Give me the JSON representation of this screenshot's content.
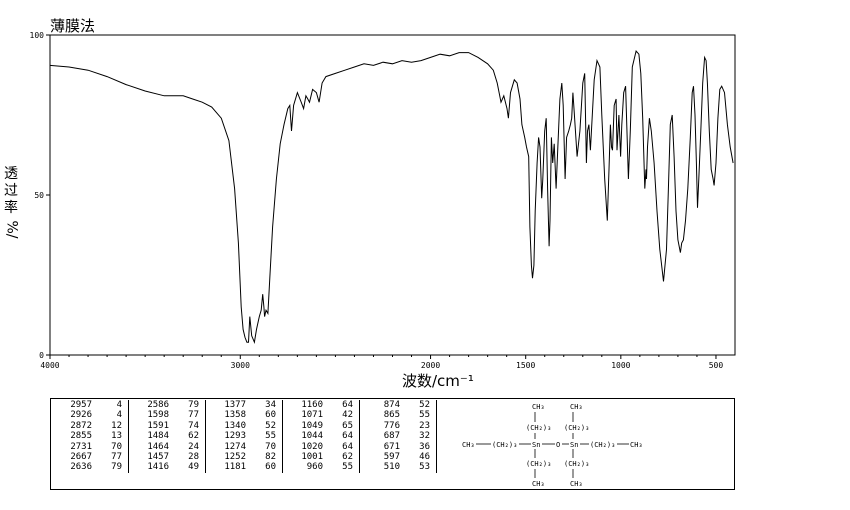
{
  "title": "薄膜法",
  "ylabel_chars": [
    "透",
    "过",
    "率"
  ],
  "ylabel_unit": "%/",
  "xlabel": "波数/cm⁻¹",
  "chart_data": {
    "type": "line",
    "xlabel": "波数/cm⁻¹",
    "ylabel": "透过率 %",
    "xlim": [
      4000,
      400
    ],
    "ylim": [
      0,
      100
    ],
    "x_ticks": [
      4000,
      3000,
      2000,
      1500,
      1000,
      500
    ],
    "x_tick_labels": [
      "4000",
      "3000",
      "2000",
      "1500",
      "1000",
      "500"
    ],
    "y_ticks": [
      0,
      50,
      100
    ],
    "y_tick_labels": [
      "0",
      "50",
      "100"
    ],
    "series": [
      {
        "points": [
          [
            4000,
            90.5
          ],
          [
            3900,
            90
          ],
          [
            3800,
            89
          ],
          [
            3700,
            87
          ],
          [
            3600,
            84.5
          ],
          [
            3500,
            82.5
          ],
          [
            3400,
            81
          ],
          [
            3300,
            81
          ],
          [
            3250,
            80
          ],
          [
            3200,
            79
          ],
          [
            3150,
            77.5
          ],
          [
            3100,
            74
          ],
          [
            3060,
            67
          ],
          [
            3030,
            52
          ],
          [
            3010,
            35
          ],
          [
            2995,
            15
          ],
          [
            2985,
            8
          ],
          [
            2975,
            5.5
          ],
          [
            2965,
            4
          ],
          [
            2957,
            4
          ],
          [
            2950,
            12
          ],
          [
            2940,
            6
          ],
          [
            2926,
            4
          ],
          [
            2915,
            8
          ],
          [
            2900,
            12
          ],
          [
            2890,
            14
          ],
          [
            2882,
            19
          ],
          [
            2876,
            15
          ],
          [
            2872,
            12
          ],
          [
            2865,
            14
          ],
          [
            2855,
            13
          ],
          [
            2845,
            24
          ],
          [
            2830,
            40
          ],
          [
            2810,
            55
          ],
          [
            2790,
            66
          ],
          [
            2770,
            72
          ],
          [
            2750,
            77
          ],
          [
            2740,
            78
          ],
          [
            2731,
            70
          ],
          [
            2720,
            78
          ],
          [
            2700,
            82
          ],
          [
            2680,
            79
          ],
          [
            2667,
            77
          ],
          [
            2655,
            81
          ],
          [
            2645,
            80
          ],
          [
            2636,
            79
          ],
          [
            2620,
            83
          ],
          [
            2600,
            82
          ],
          [
            2586,
            79
          ],
          [
            2570,
            85
          ],
          [
            2550,
            87
          ],
          [
            2500,
            88
          ],
          [
            2450,
            89
          ],
          [
            2400,
            90
          ],
          [
            2350,
            91
          ],
          [
            2300,
            90.5
          ],
          [
            2250,
            91.5
          ],
          [
            2200,
            91
          ],
          [
            2150,
            92
          ],
          [
            2100,
            91.5
          ],
          [
            2050,
            92
          ],
          [
            2000,
            93
          ],
          [
            1950,
            94
          ],
          [
            1900,
            93.5
          ],
          [
            1850,
            94.5
          ],
          [
            1800,
            94.5
          ],
          [
            1750,
            93
          ],
          [
            1700,
            91
          ],
          [
            1670,
            89
          ],
          [
            1650,
            85
          ],
          [
            1630,
            79
          ],
          [
            1615,
            81
          ],
          [
            1598,
            77
          ],
          [
            1591,
            74
          ],
          [
            1580,
            82
          ],
          [
            1560,
            86
          ],
          [
            1545,
            85
          ],
          [
            1530,
            80
          ],
          [
            1520,
            72
          ],
          [
            1505,
            68
          ],
          [
            1496,
            65
          ],
          [
            1484,
            62
          ],
          [
            1478,
            40
          ],
          [
            1470,
            28
          ],
          [
            1464,
            24
          ],
          [
            1457,
            28
          ],
          [
            1450,
            45
          ],
          [
            1440,
            60
          ],
          [
            1432,
            68
          ],
          [
            1425,
            65
          ],
          [
            1416,
            49
          ],
          [
            1410,
            55
          ],
          [
            1400,
            70
          ],
          [
            1392,
            74
          ],
          [
            1385,
            52
          ],
          [
            1377,
            34
          ],
          [
            1372,
            42
          ],
          [
            1365,
            68
          ],
          [
            1358,
            60
          ],
          [
            1350,
            66
          ],
          [
            1340,
            52
          ],
          [
            1332,
            64
          ],
          [
            1320,
            80
          ],
          [
            1310,
            85
          ],
          [
            1303,
            78
          ],
          [
            1293,
            55
          ],
          [
            1285,
            68
          ],
          [
            1274,
            70
          ],
          [
            1265,
            72
          ],
          [
            1258,
            74
          ],
          [
            1252,
            82
          ],
          [
            1245,
            76
          ],
          [
            1230,
            62
          ],
          [
            1215,
            70
          ],
          [
            1200,
            85
          ],
          [
            1190,
            88
          ],
          [
            1181,
            60
          ],
          [
            1175,
            70
          ],
          [
            1168,
            72
          ],
          [
            1160,
            64
          ],
          [
            1150,
            75
          ],
          [
            1140,
            86
          ],
          [
            1125,
            92
          ],
          [
            1110,
            90
          ],
          [
            1100,
            75
          ],
          [
            1085,
            55
          ],
          [
            1071,
            42
          ],
          [
            1062,
            58
          ],
          [
            1055,
            72
          ],
          [
            1049,
            65
          ],
          [
            1044,
            64
          ],
          [
            1035,
            78
          ],
          [
            1025,
            80
          ],
          [
            1020,
            64
          ],
          [
            1010,
            75
          ],
          [
            1001,
            62
          ],
          [
            995,
            72
          ],
          [
            985,
            82
          ],
          [
            975,
            84
          ],
          [
            960,
            55
          ],
          [
            950,
            70
          ],
          [
            940,
            90
          ],
          [
            920,
            95
          ],
          [
            905,
            94
          ],
          [
            895,
            88
          ],
          [
            885,
            74
          ],
          [
            874,
            52
          ],
          [
            868,
            58
          ],
          [
            865,
            55
          ],
          [
            860,
            65
          ],
          [
            850,
            74
          ],
          [
            840,
            70
          ],
          [
            825,
            60
          ],
          [
            810,
            45
          ],
          [
            795,
            33
          ],
          [
            776,
            23
          ],
          [
            760,
            33
          ],
          [
            750,
            52
          ],
          [
            740,
            72
          ],
          [
            730,
            75
          ],
          [
            720,
            62
          ],
          [
            710,
            45
          ],
          [
            700,
            36
          ],
          [
            687,
            32
          ],
          [
            680,
            35
          ],
          [
            671,
            36
          ],
          [
            660,
            42
          ],
          [
            648,
            52
          ],
          [
            635,
            68
          ],
          [
            625,
            82
          ],
          [
            618,
            84
          ],
          [
            610,
            75
          ],
          [
            603,
            60
          ],
          [
            597,
            46
          ],
          [
            590,
            55
          ],
          [
            580,
            70
          ],
          [
            570,
            85
          ],
          [
            560,
            93
          ],
          [
            552,
            92
          ],
          [
            545,
            85
          ],
          [
            535,
            70
          ],
          [
            525,
            58
          ],
          [
            515,
            55
          ],
          [
            510,
            53
          ],
          [
            500,
            60
          ],
          [
            490,
            74
          ],
          [
            480,
            83
          ],
          [
            470,
            84
          ],
          [
            455,
            82
          ],
          [
            440,
            72
          ],
          [
            425,
            65
          ],
          [
            410,
            60
          ]
        ]
      }
    ]
  },
  "peak_table": [
    [
      [
        "2957",
        "4"
      ],
      [
        "2926",
        "4"
      ],
      [
        "2872",
        "12"
      ],
      [
        "2855",
        "13"
      ],
      [
        "2731",
        "70"
      ],
      [
        "2667",
        "77"
      ],
      [
        "2636",
        "79"
      ]
    ],
    [
      [
        "2586",
        "79"
      ],
      [
        "1598",
        "77"
      ],
      [
        "1591",
        "74"
      ],
      [
        "1484",
        "62"
      ],
      [
        "1464",
        "24"
      ],
      [
        "1457",
        "28"
      ],
      [
        "1416",
        "49"
      ]
    ],
    [
      [
        "1377",
        "34"
      ],
      [
        "1358",
        "60"
      ],
      [
        "1340",
        "52"
      ],
      [
        "1293",
        "55"
      ],
      [
        "1274",
        "70"
      ],
      [
        "1252",
        "82"
      ],
      [
        "1181",
        "60"
      ]
    ],
    [
      [
        "1160",
        "64"
      ],
      [
        "1071",
        "42"
      ],
      [
        "1049",
        "65"
      ],
      [
        "1044",
        "64"
      ],
      [
        "1020",
        "64"
      ],
      [
        "1001",
        "62"
      ],
      [
        "960",
        "55"
      ]
    ],
    [
      [
        "874",
        "52"
      ],
      [
        "865",
        "55"
      ],
      [
        "776",
        "23"
      ],
      [
        "687",
        "32"
      ],
      [
        "671",
        "36"
      ],
      [
        "597",
        "46"
      ],
      [
        "510",
        "53"
      ]
    ]
  ],
  "structure": {
    "ch3": "CH₃",
    "ch2": "(CH₂)₃",
    "sn": "Sn",
    "o": "O"
  }
}
